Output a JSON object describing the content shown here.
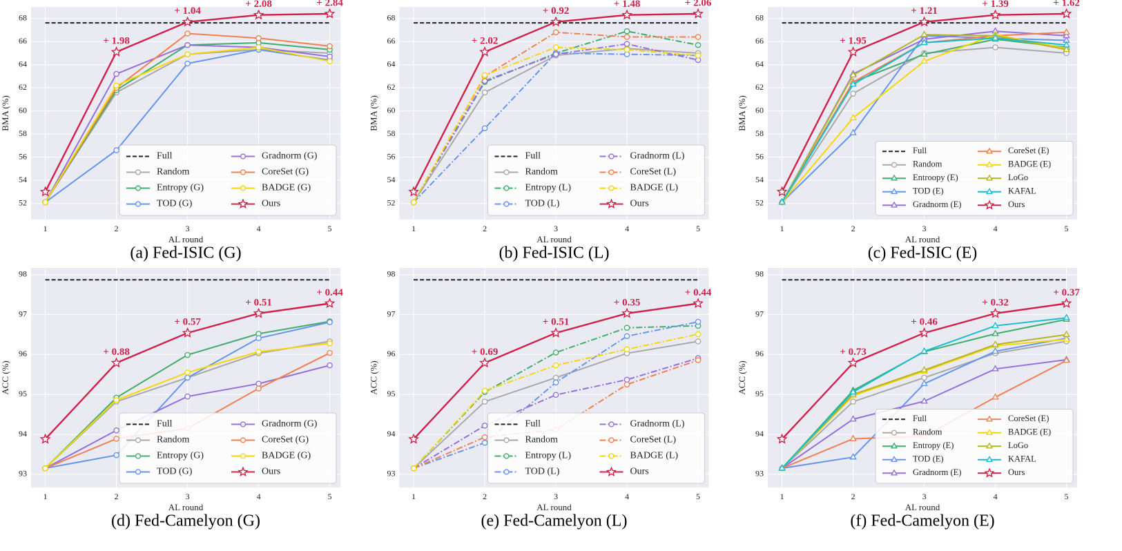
{
  "chart_data": [
    {
      "type": "line",
      "caption": "(a) Fed-ISIC (G)",
      "xlabel": "AL round",
      "ylabel": "BMA (%)",
      "x": [
        1,
        2,
        3,
        4,
        5
      ],
      "xlim": [
        0.8,
        5.15
      ],
      "xticks": [
        1,
        2,
        3,
        4,
        5
      ],
      "ylim": [
        50.6,
        69.0
      ],
      "yticks": [
        52,
        54,
        56,
        58,
        60,
        62,
        64,
        66,
        68
      ],
      "grid": true,
      "legend": "lower right",
      "legend_columns": 2,
      "series": [
        {
          "name": "Full",
          "color": "#222222",
          "linestyle": "dashed",
          "marker": "none",
          "values": [
            67.62,
            67.62,
            67.62,
            67.62,
            67.62
          ]
        },
        {
          "name": "Random",
          "color": "#a9a9a9",
          "linestyle": "solid",
          "marker": "circle",
          "values": [
            52.1,
            61.6,
            64.9,
            65.3,
            65.0
          ]
        },
        {
          "name": "Entropy (G)",
          "color": "#3fae6a",
          "linestyle": "solid",
          "marker": "circle",
          "values": [
            52.1,
            61.8,
            65.7,
            65.9,
            65.3
          ]
        },
        {
          "name": "TOD (G)",
          "color": "#6495ed",
          "linestyle": "solid",
          "marker": "circle",
          "values": [
            52.1,
            56.6,
            64.1,
            65.3,
            64.4
          ]
        },
        {
          "name": "Gradnorm (G)",
          "color": "#9370db",
          "linestyle": "solid",
          "marker": "circle",
          "values": [
            52.1,
            63.2,
            65.7,
            65.5,
            64.7
          ]
        },
        {
          "name": "CoreSet (G)",
          "color": "#f08050",
          "linestyle": "solid",
          "marker": "circle",
          "values": [
            52.1,
            62.0,
            66.7,
            66.3,
            65.6
          ]
        },
        {
          "name": "BADGE (G)",
          "color": "#f5d60a",
          "linestyle": "solid",
          "marker": "circle",
          "values": [
            52.1,
            62.2,
            64.9,
            65.5,
            64.3
          ]
        },
        {
          "name": "Ours",
          "color": "#d0204a",
          "linestyle": "solid",
          "marker": "star",
          "values": [
            53.0,
            65.1,
            67.7,
            68.3,
            68.4
          ]
        }
      ],
      "annotations": [
        {
          "x": 2,
          "y": 65.1,
          "text": "+ 1.98"
        },
        {
          "x": 3,
          "y": 67.7,
          "text": "+ 1.04"
        },
        {
          "x": 4,
          "y": 68.3,
          "text": "+ 2.08"
        },
        {
          "x": 5,
          "y": 68.4,
          "text": "+ 2.84"
        }
      ]
    },
    {
      "type": "line",
      "caption": "(b) Fed-ISIC (L)",
      "xlabel": "AL round",
      "ylabel": "BMA (%)",
      "x": [
        1,
        2,
        3,
        4,
        5
      ],
      "xlim": [
        0.8,
        5.15
      ],
      "xticks": [
        1,
        2,
        3,
        4,
        5
      ],
      "ylim": [
        50.6,
        69.0
      ],
      "yticks": [
        52,
        54,
        56,
        58,
        60,
        62,
        64,
        66,
        68
      ],
      "grid": true,
      "legend": "lower right",
      "legend_columns": 2,
      "series": [
        {
          "name": "Full",
          "color": "#222222",
          "linestyle": "dashed",
          "marker": "none",
          "values": [
            67.62,
            67.62,
            67.62,
            67.62,
            67.62
          ]
        },
        {
          "name": "Random",
          "color": "#a9a9a9",
          "linestyle": "solid",
          "marker": "circle",
          "values": [
            52.1,
            61.6,
            64.8,
            65.4,
            65.0
          ]
        },
        {
          "name": "Entropy (L)",
          "color": "#3fae6a",
          "linestyle": "dashdot",
          "marker": "circle",
          "values": [
            52.1,
            62.5,
            65.0,
            66.9,
            65.7
          ]
        },
        {
          "name": "TOD (L)",
          "color": "#6495ed",
          "linestyle": "dashdot",
          "marker": "circle",
          "values": [
            52.1,
            58.5,
            65.0,
            64.9,
            64.8
          ]
        },
        {
          "name": "Gradnorm (L)",
          "color": "#9370db",
          "linestyle": "dashdot",
          "marker": "circle",
          "values": [
            52.1,
            62.6,
            64.9,
            65.8,
            64.4
          ]
        },
        {
          "name": "CoreSet (L)",
          "color": "#f08050",
          "linestyle": "dashdot",
          "marker": "circle",
          "values": [
            52.1,
            63.0,
            66.8,
            66.4,
            66.4
          ]
        },
        {
          "name": "BADGE (L)",
          "color": "#f5d60a",
          "linestyle": "dashdot",
          "marker": "circle",
          "values": [
            52.1,
            63.1,
            65.5,
            65.3,
            64.8
          ]
        },
        {
          "name": "Ours",
          "color": "#d0204a",
          "linestyle": "solid",
          "marker": "star",
          "values": [
            53.0,
            65.1,
            67.7,
            68.3,
            68.4
          ]
        }
      ],
      "annotations": [
        {
          "x": 2,
          "y": 65.1,
          "text": "+ 2.02"
        },
        {
          "x": 3,
          "y": 67.7,
          "text": "+ 0.92"
        },
        {
          "x": 4,
          "y": 68.3,
          "text": "+ 1.48"
        },
        {
          "x": 5,
          "y": 68.4,
          "text": "+ 2.06"
        }
      ]
    },
    {
      "type": "line",
      "caption": "(c) Fed-ISIC (E)",
      "xlabel": "AL round",
      "ylabel": "BMA (%)",
      "x": [
        1,
        2,
        3,
        4,
        5
      ],
      "xlim": [
        0.8,
        5.15
      ],
      "xticks": [
        1,
        2,
        3,
        4,
        5
      ],
      "ylim": [
        50.6,
        69.0
      ],
      "yticks": [
        52,
        54,
        56,
        58,
        60,
        62,
        64,
        66,
        68
      ],
      "grid": true,
      "legend": "lower right",
      "legend_columns": 2,
      "series": [
        {
          "name": "Full",
          "color": "#222222",
          "linestyle": "dashed",
          "marker": "none",
          "values": [
            67.62,
            67.62,
            67.62,
            67.62,
            67.62
          ]
        },
        {
          "name": "Random",
          "color": "#a9a9a9",
          "linestyle": "solid",
          "marker": "circle",
          "values": [
            52.1,
            61.5,
            65.0,
            65.5,
            65.0
          ]
        },
        {
          "name": "Entroopy (E)",
          "color": "#3fae6a",
          "linestyle": "solid",
          "marker": "triangle",
          "values": [
            52.1,
            62.5,
            64.9,
            66.2,
            65.5
          ]
        },
        {
          "name": "TOD (E)",
          "color": "#6495ed",
          "linestyle": "solid",
          "marker": "triangle",
          "values": [
            52.1,
            58.1,
            66.5,
            66.3,
            66.1
          ]
        },
        {
          "name": "Gradnorm (E)",
          "color": "#9370db",
          "linestyle": "solid",
          "marker": "triangle",
          "values": [
            52.1,
            63.2,
            66.2,
            66.9,
            66.5
          ]
        },
        {
          "name": "CoreSet (E)",
          "color": "#f08050",
          "linestyle": "solid",
          "marker": "triangle",
          "values": [
            52.1,
            62.5,
            65.9,
            66.5,
            66.8
          ]
        },
        {
          "name": "BADGE (E)",
          "color": "#f5d60a",
          "linestyle": "solid",
          "marker": "triangle",
          "values": [
            52.1,
            59.4,
            64.3,
            66.6,
            65.4
          ]
        },
        {
          "name": "LoGo",
          "color": "#b5b522",
          "linestyle": "solid",
          "marker": "triangle",
          "values": [
            52.1,
            63.1,
            66.6,
            66.5,
            65.3
          ]
        },
        {
          "name": "KAFAL",
          "color": "#17becf",
          "linestyle": "solid",
          "marker": "triangle",
          "values": [
            52.1,
            62.3,
            65.9,
            66.3,
            65.7
          ]
        },
        {
          "name": "Ours",
          "color": "#d0204a",
          "linestyle": "solid",
          "marker": "star",
          "values": [
            53.0,
            65.1,
            67.7,
            68.3,
            68.4
          ]
        }
      ],
      "annotations": [
        {
          "x": 2,
          "y": 65.1,
          "text": "+ 1.95"
        },
        {
          "x": 3,
          "y": 67.7,
          "text": "+ 1.21"
        },
        {
          "x": 4,
          "y": 68.3,
          "text": "+ 1.39"
        },
        {
          "x": 5,
          "y": 68.4,
          "text": "+ 1.62"
        }
      ]
    },
    {
      "type": "line",
      "caption": "(d) Fed-Camelyon (G)",
      "xlabel": "AL round",
      "ylabel": "ACC (%)",
      "x": [
        1,
        2,
        3,
        4,
        5
      ],
      "xlim": [
        0.8,
        5.15
      ],
      "xticks": [
        1,
        2,
        3,
        4,
        5
      ],
      "ylim": [
        92.67,
        98.17
      ],
      "yticks": [
        93,
        94,
        95,
        96,
        97,
        98
      ],
      "grid": true,
      "legend": "lower right",
      "legend_columns": 2,
      "series": [
        {
          "name": "Full",
          "color": "#222222",
          "linestyle": "dashed",
          "marker": "none",
          "values": [
            97.87,
            97.87,
            97.87,
            97.87,
            97.87
          ]
        },
        {
          "name": "Random",
          "color": "#a9a9a9",
          "linestyle": "solid",
          "marker": "circle",
          "values": [
            93.15,
            94.82,
            95.42,
            96.03,
            96.33
          ]
        },
        {
          "name": "Entropy (G)",
          "color": "#3fae6a",
          "linestyle": "solid",
          "marker": "circle",
          "values": [
            93.15,
            94.92,
            95.99,
            96.52,
            96.83
          ]
        },
        {
          "name": "TOD (G)",
          "color": "#6495ed",
          "linestyle": "solid",
          "marker": "circle",
          "values": [
            93.15,
            93.48,
            95.42,
            96.41,
            96.81
          ]
        },
        {
          "name": "Gradnorm (G)",
          "color": "#9370db",
          "linestyle": "solid",
          "marker": "circle",
          "values": [
            93.15,
            94.1,
            94.95,
            95.27,
            95.73
          ]
        },
        {
          "name": "CoreSet (G)",
          "color": "#f08050",
          "linestyle": "solid",
          "marker": "circle",
          "values": [
            93.15,
            93.89,
            94.15,
            95.15,
            96.04
          ]
        },
        {
          "name": "BADGE (G)",
          "color": "#f5d60a",
          "linestyle": "solid",
          "marker": "circle",
          "values": [
            93.15,
            94.86,
            95.55,
            96.07,
            96.28
          ]
        },
        {
          "name": "Ours",
          "color": "#d0204a",
          "linestyle": "solid",
          "marker": "star",
          "values": [
            93.88,
            95.79,
            96.54,
            97.03,
            97.28
          ]
        }
      ],
      "annotations": [
        {
          "x": 2,
          "y": 95.79,
          "text": "+ 0.88"
        },
        {
          "x": 3,
          "y": 96.54,
          "text": "+ 0.57"
        },
        {
          "x": 4,
          "y": 97.03,
          "text": "+ 0.51"
        },
        {
          "x": 5,
          "y": 97.28,
          "text": "+ 0.44"
        }
      ]
    },
    {
      "type": "line",
      "caption": "(e) Fed-Camelyon (L)",
      "xlabel": "AL round",
      "ylabel": "ACC (%)",
      "x": [
        1,
        2,
        3,
        4,
        5
      ],
      "xlim": [
        0.8,
        5.15
      ],
      "xticks": [
        1,
        2,
        3,
        4,
        5
      ],
      "ylim": [
        92.67,
        98.17
      ],
      "yticks": [
        93,
        94,
        95,
        96,
        97,
        98
      ],
      "grid": true,
      "legend": "lower right",
      "legend_columns": 2,
      "series": [
        {
          "name": "Full",
          "color": "#222222",
          "linestyle": "dashed",
          "marker": "none",
          "values": [
            97.87,
            97.87,
            97.87,
            97.87,
            97.87
          ]
        },
        {
          "name": "Random",
          "color": "#a9a9a9",
          "linestyle": "solid",
          "marker": "circle",
          "values": [
            93.15,
            94.82,
            95.42,
            96.03,
            96.33
          ]
        },
        {
          "name": "Entropy (L)",
          "color": "#3fae6a",
          "linestyle": "dashdot",
          "marker": "circle",
          "values": [
            93.15,
            95.06,
            96.05,
            96.67,
            96.72
          ]
        },
        {
          "name": "TOD (L)",
          "color": "#6495ed",
          "linestyle": "dashdot",
          "marker": "circle",
          "values": [
            93.15,
            93.79,
            95.3,
            96.46,
            96.82
          ]
        },
        {
          "name": "Gradnorm (L)",
          "color": "#9370db",
          "linestyle": "dashdot",
          "marker": "circle",
          "values": [
            93.15,
            94.22,
            94.99,
            95.37,
            95.91
          ]
        },
        {
          "name": "CoreSet (L)",
          "color": "#f08050",
          "linestyle": "dashdot",
          "marker": "circle",
          "values": [
            93.15,
            93.93,
            94.12,
            95.25,
            95.86
          ]
        },
        {
          "name": "BADGE (L)",
          "color": "#f5d60a",
          "linestyle": "dashdot",
          "marker": "circle",
          "values": [
            93.15,
            95.09,
            95.73,
            96.13,
            96.51
          ]
        },
        {
          "name": "Ours",
          "color": "#d0204a",
          "linestyle": "solid",
          "marker": "star",
          "values": [
            93.88,
            95.79,
            96.54,
            97.03,
            97.28
          ]
        }
      ],
      "annotations": [
        {
          "x": 2,
          "y": 95.79,
          "text": "+ 0.69"
        },
        {
          "x": 3,
          "y": 96.54,
          "text": "+ 0.51"
        },
        {
          "x": 4,
          "y": 97.03,
          "text": "+ 0.35"
        },
        {
          "x": 5,
          "y": 97.28,
          "text": "+ 0.44"
        }
      ]
    },
    {
      "type": "line",
      "caption": "(f) Fed-Camelyon (E)",
      "xlabel": "AL round",
      "ylabel": "ACC (%)",
      "x": [
        1,
        2,
        3,
        4,
        5
      ],
      "xlim": [
        0.8,
        5.15
      ],
      "xticks": [
        1,
        2,
        3,
        4,
        5
      ],
      "ylim": [
        92.67,
        98.17
      ],
      "yticks": [
        93,
        94,
        95,
        96,
        97,
        98
      ],
      "grid": true,
      "legend": "lower right",
      "legend_columns": 2,
      "series": [
        {
          "name": "Full",
          "color": "#222222",
          "linestyle": "dashed",
          "marker": "none",
          "values": [
            97.87,
            97.87,
            97.87,
            97.87,
            97.87
          ]
        },
        {
          "name": "Random",
          "color": "#a9a9a9",
          "linestyle": "solid",
          "marker": "circle",
          "values": [
            93.15,
            94.82,
            95.42,
            96.03,
            96.33
          ]
        },
        {
          "name": "Entropy (E)",
          "color": "#3fae6a",
          "linestyle": "solid",
          "marker": "triangle",
          "values": [
            93.15,
            95.1,
            96.07,
            96.52,
            96.88
          ]
        },
        {
          "name": "TOD (E)",
          "color": "#6495ed",
          "linestyle": "solid",
          "marker": "triangle",
          "values": [
            93.15,
            93.43,
            95.27,
            96.08,
            96.41
          ]
        },
        {
          "name": "Gradnorm (E)",
          "color": "#9370db",
          "linestyle": "solid",
          "marker": "triangle",
          "values": [
            93.15,
            94.38,
            94.83,
            95.64,
            95.87
          ]
        },
        {
          "name": "CoreSet (E)",
          "color": "#f08050",
          "linestyle": "solid",
          "marker": "triangle",
          "values": [
            93.15,
            93.89,
            93.95,
            94.93,
            95.85
          ]
        },
        {
          "name": "BADGE (E)",
          "color": "#f5d60a",
          "linestyle": "solid",
          "marker": "triangle",
          "values": [
            93.15,
            94.97,
            95.58,
            96.22,
            96.38
          ]
        },
        {
          "name": "LoGo",
          "color": "#b5b522",
          "linestyle": "solid",
          "marker": "triangle",
          "values": [
            93.15,
            95.0,
            95.61,
            96.25,
            96.5
          ]
        },
        {
          "name": "KAFAL",
          "color": "#17becf",
          "linestyle": "solid",
          "marker": "triangle",
          "values": [
            93.15,
            95.06,
            96.08,
            96.72,
            96.92
          ]
        },
        {
          "name": "Ours",
          "color": "#d0204a",
          "linestyle": "solid",
          "marker": "star",
          "values": [
            93.88,
            95.79,
            96.54,
            97.03,
            97.28
          ]
        }
      ],
      "annotations": [
        {
          "x": 2,
          "y": 95.79,
          "text": "+ 0.73"
        },
        {
          "x": 3,
          "y": 96.54,
          "text": "+ 0.46"
        },
        {
          "x": 4,
          "y": 97.03,
          "text": "+ 0.32"
        },
        {
          "x": 5,
          "y": 97.28,
          "text": "+ 0.37"
        }
      ]
    }
  ]
}
